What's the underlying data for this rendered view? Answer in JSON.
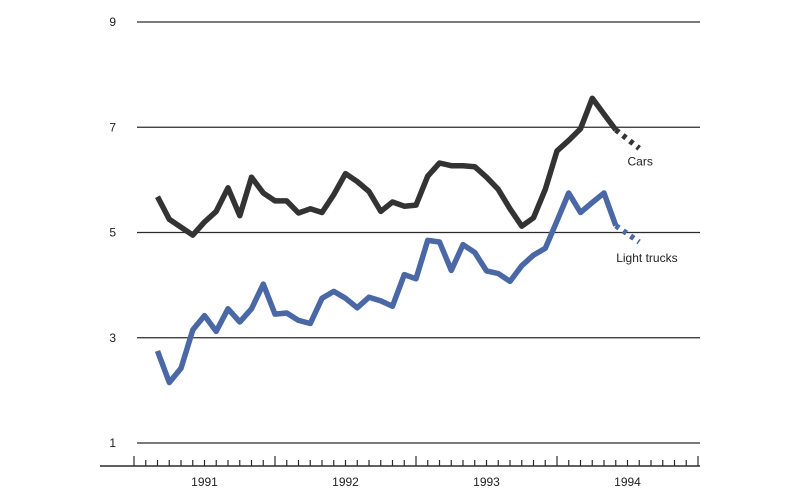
{
  "chart_data": {
    "type": "line",
    "title": "",
    "xlabel": "",
    "ylabel": "",
    "ylim": [
      1,
      9
    ],
    "yticks": [
      1,
      3,
      5,
      7,
      9
    ],
    "xlim": [
      1990.5,
      1994.5
    ],
    "xtick_labels": [
      {
        "label": "1991",
        "x": 1991.0
      },
      {
        "label": "1992",
        "x": 1992.0
      },
      {
        "label": "1993",
        "x": 1993.0
      },
      {
        "label": "1994",
        "x": 1994.0
      }
    ],
    "grid": true,
    "legend": "inline labels",
    "colors": {
      "Cars": "#333333",
      "Light trucks": "#4a67a6"
    },
    "series": [
      {
        "name": "Cars",
        "x": [
          1990.667,
          1990.75,
          1990.833,
          1990.917,
          1991.0,
          1991.083,
          1991.167,
          1991.25,
          1991.333,
          1991.417,
          1991.5,
          1991.583,
          1991.667,
          1991.75,
          1991.833,
          1991.917,
          1992.0,
          1992.083,
          1992.167,
          1992.25,
          1992.333,
          1992.417,
          1992.5,
          1992.583,
          1992.667,
          1992.75,
          1992.833,
          1992.917,
          1993.0,
          1993.083,
          1993.167,
          1993.25,
          1993.333,
          1993.417,
          1993.5,
          1993.583,
          1993.667,
          1993.75,
          1993.833,
          1993.917
        ],
        "y": [
          5.68,
          5.25,
          5.1,
          4.95,
          5.2,
          5.4,
          5.85,
          5.32,
          6.05,
          5.75,
          5.6,
          5.6,
          5.37,
          5.45,
          5.38,
          5.72,
          6.12,
          5.97,
          5.78,
          5.4,
          5.58,
          5.5,
          5.52,
          6.07,
          6.32,
          6.27,
          6.27,
          6.25,
          6.05,
          5.82,
          5.45,
          5.12,
          5.28,
          5.82,
          6.55,
          6.75,
          6.97,
          7.55,
          7.25,
          6.95
        ],
        "forecast_x": [
          1993.917,
          1994.083
        ],
        "forecast_y": [
          6.95,
          6.6
        ]
      },
      {
        "name": "Light trucks",
        "x": [
          1990.667,
          1990.75,
          1990.833,
          1990.917,
          1991.0,
          1991.083,
          1991.167,
          1991.25,
          1991.333,
          1991.417,
          1991.5,
          1991.583,
          1991.667,
          1991.75,
          1991.833,
          1991.917,
          1992.0,
          1992.083,
          1992.167,
          1992.25,
          1992.333,
          1992.417,
          1992.5,
          1992.583,
          1992.667,
          1992.75,
          1992.833,
          1992.917,
          1993.0,
          1993.083,
          1993.167,
          1993.25,
          1993.333,
          1993.417,
          1993.5,
          1993.583,
          1993.667,
          1993.75,
          1993.833,
          1993.917
        ],
        "y": [
          2.75,
          2.15,
          2.42,
          3.15,
          3.42,
          3.12,
          3.55,
          3.3,
          3.55,
          4.02,
          3.45,
          3.47,
          3.33,
          3.27,
          3.75,
          3.88,
          3.75,
          3.57,
          3.77,
          3.7,
          3.6,
          4.2,
          4.12,
          4.85,
          4.82,
          4.28,
          4.77,
          4.62,
          4.27,
          4.22,
          4.07,
          4.37,
          4.57,
          4.7,
          5.22,
          5.75,
          5.38,
          5.57,
          5.75,
          5.13
        ],
        "forecast_x": [
          1993.917,
          1994.083
        ],
        "forecast_y": [
          5.13,
          4.82
        ]
      }
    ],
    "series_labels": [
      {
        "text": "Cars",
        "x": 1994.0,
        "y": 6.35
      },
      {
        "text": "Light trucks",
        "x": 1993.92,
        "y": 4.52
      }
    ]
  }
}
